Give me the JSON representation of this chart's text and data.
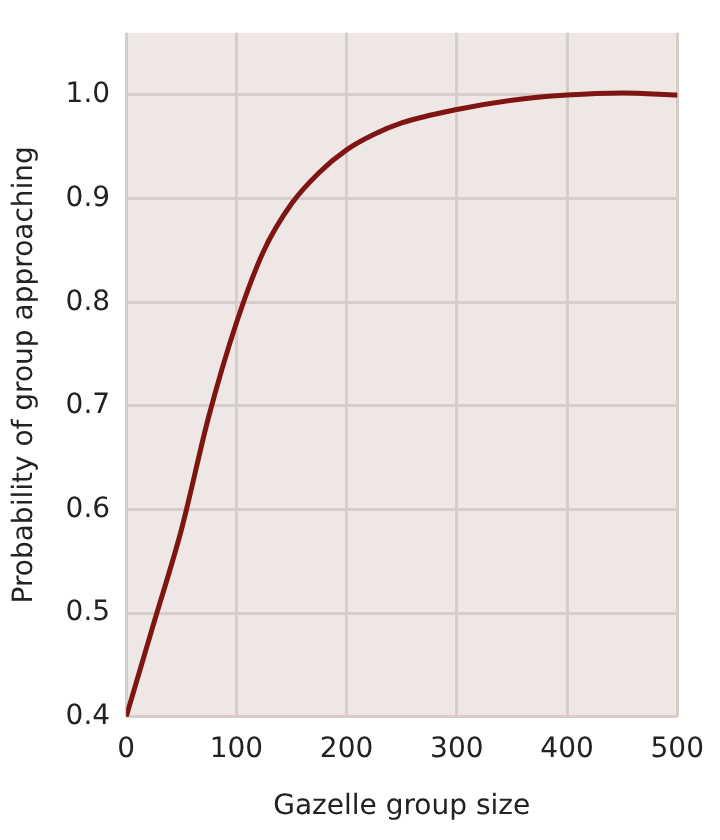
{
  "chart_data": {
    "type": "line",
    "xlabel": "Gazelle group size",
    "ylabel": "Probability of group approaching",
    "x": [
      0,
      25,
      50,
      75,
      100,
      125,
      150,
      175,
      200,
      225,
      250,
      300,
      350,
      400,
      450,
      500
    ],
    "series": [
      {
        "color": "#7f1512",
        "values": [
          0.4,
          0.49,
          0.58,
          0.69,
          0.78,
          0.85,
          0.895,
          0.925,
          0.947,
          0.962,
          0.973,
          0.986,
          0.995,
          1.0,
          1.002,
          1.0
        ]
      }
    ],
    "xlim": [
      0,
      500
    ],
    "xticks": [
      0,
      100,
      200,
      300,
      400,
      500
    ],
    "ylim": [
      0.4,
      1.06
    ],
    "yticks": [
      {
        "value": 0.4,
        "label": "0.4"
      },
      {
        "value": 0.5,
        "label": "0.5"
      },
      {
        "value": 0.6,
        "label": "0.6"
      },
      {
        "value": 0.7,
        "label": "0.7"
      },
      {
        "value": 0.8,
        "label": "0.8"
      },
      {
        "value": 0.9,
        "label": "0.9"
      },
      {
        "value": 1.0,
        "label": "1.0"
      }
    ],
    "grid": true,
    "legend": false,
    "marker": "none",
    "line_style": "solid"
  }
}
